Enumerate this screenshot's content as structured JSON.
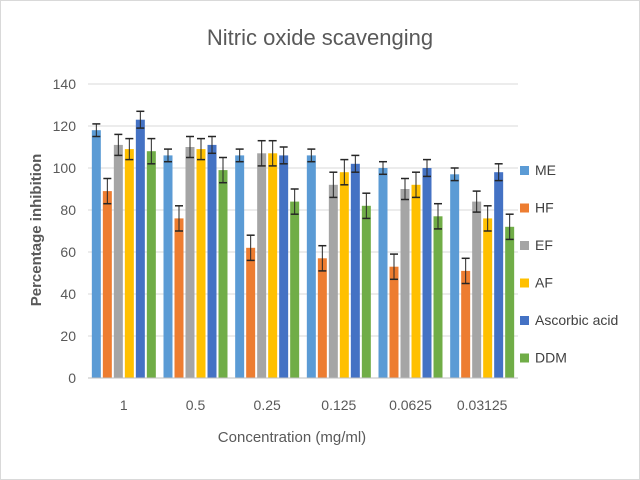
{
  "chart_data": {
    "type": "bar",
    "title": "Nitric oxide scavenging",
    "xlabel": "Concentration (mg/ml)",
    "ylabel": "Percentage inhibition",
    "ylim": [
      0,
      140
    ],
    "yticks": [
      0,
      20,
      40,
      60,
      80,
      100,
      120,
      140
    ],
    "grid": true,
    "legend_position": "right",
    "categories": [
      "1",
      "0.5",
      "0.25",
      "0.125",
      "0.0625",
      "0.03125"
    ],
    "series": [
      {
        "name": "ME",
        "color": "#5b9bd5",
        "values": [
          118,
          106,
          106,
          106,
          100,
          97
        ],
        "errors": [
          3,
          3,
          3,
          3,
          3,
          3
        ]
      },
      {
        "name": "HF",
        "color": "#ed7d31",
        "values": [
          89,
          76,
          62,
          57,
          53,
          51
        ],
        "errors": [
          6,
          6,
          6,
          6,
          6,
          6
        ]
      },
      {
        "name": "EF",
        "color": "#a5a5a5",
        "values": [
          111,
          110,
          107,
          92,
          90,
          84
        ],
        "errors": [
          5,
          5,
          6,
          6,
          5,
          5
        ]
      },
      {
        "name": "AF",
        "color": "#ffc000",
        "values": [
          109,
          109,
          107,
          98,
          92,
          76
        ],
        "errors": [
          5,
          5,
          6,
          6,
          6,
          6
        ]
      },
      {
        "name": "Ascorbic acid",
        "color": "#4472c4",
        "values": [
          123,
          111,
          106,
          102,
          100,
          98
        ],
        "errors": [
          4,
          4,
          4,
          4,
          4,
          4
        ]
      },
      {
        "name": "DDM",
        "color": "#70ad47",
        "values": [
          108,
          99,
          84,
          82,
          77,
          72
        ],
        "errors": [
          6,
          6,
          6,
          6,
          6,
          6
        ]
      }
    ]
  }
}
